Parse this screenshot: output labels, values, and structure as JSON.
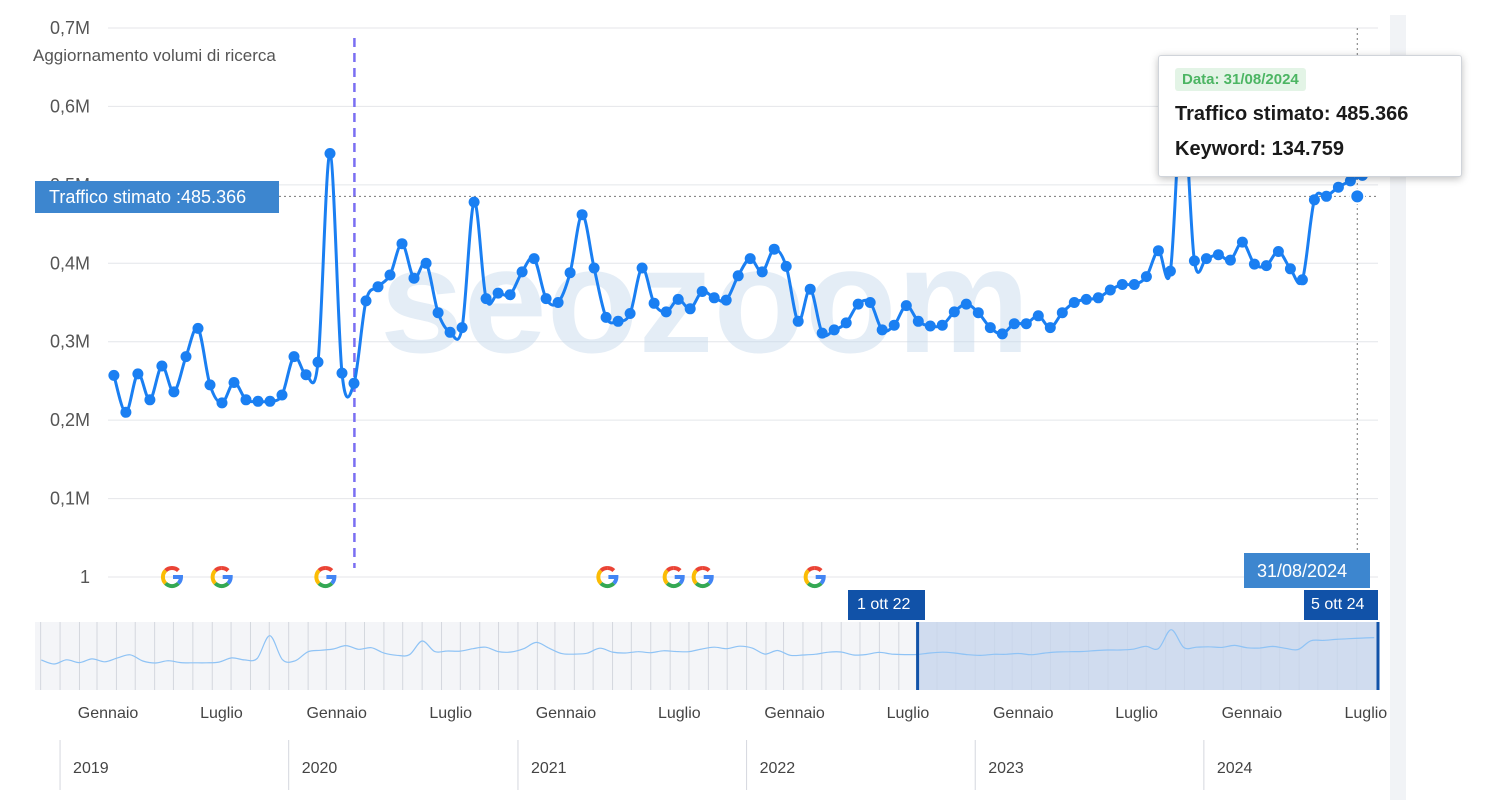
{
  "chart_data": {
    "type": "line",
    "title": "",
    "y_axis": {
      "ticks": [
        "1",
        "0,1M",
        "0,2M",
        "0,3M",
        "0,4M",
        "0,5M",
        "0,6M",
        "0,7M"
      ],
      "ylim": [
        0,
        700000
      ]
    },
    "x_axis_months": [
      "Gennaio",
      "Luglio",
      "Gennaio",
      "Luglio",
      "Gennaio",
      "Luglio",
      "Gennaio",
      "Luglio",
      "Gennaio",
      "Luglio",
      "Gennaio",
      "Luglio"
    ],
    "x_axis_years": [
      "2019",
      "2020",
      "2021",
      "2022",
      "2023",
      "2024"
    ],
    "series": [
      {
        "color": "#1a7ff2",
        "x_start": "2018-12-02",
        "x_end": "2024-09-29",
        "values": [
          257000,
          210000,
          259000,
          226000,
          269000,
          236000,
          281000,
          317000,
          245000,
          222000,
          248000,
          226000,
          224000,
          224000,
          232000,
          281000,
          258000,
          274000,
          540000,
          260000,
          247000,
          352000,
          370000,
          385000,
          425000,
          381000,
          400000,
          337000,
          312000,
          318000,
          478000,
          355000,
          362000,
          360000,
          389000,
          406000,
          355000,
          350000,
          388000,
          462000,
          394000,
          331000,
          326000,
          336000,
          394000,
          349000,
          338000,
          354000,
          342000,
          364000,
          356000,
          353000,
          384000,
          406000,
          389000,
          418000,
          396000,
          326000,
          367000,
          311000,
          315000,
          324000,
          348000,
          350000,
          315000,
          321000,
          346000,
          326000,
          320000,
          321000,
          338000,
          348000,
          337000,
          318000,
          310000,
          323000,
          323000,
          333000,
          318000,
          337000,
          350000,
          354000,
          356000,
          366000,
          373000,
          373000,
          383000,
          416000,
          390000,
          610000,
          403000,
          406000,
          411000,
          404000,
          427000,
          399000,
          397000,
          415000,
          393000,
          379000,
          481000,
          485366,
          497000,
          505000,
          512000,
          518000
        ]
      }
    ],
    "reference_lines": [
      {
        "label": "Aggiornamento volumi di ricerca",
        "x": "2020-01-12",
        "style": "dashed"
      }
    ],
    "google_update_markers": [
      "2019-03-10",
      "2019-06-02",
      "2019-11-24",
      "2021-03-14",
      "2021-07-04",
      "2021-08-22",
      "2022-02-27"
    ],
    "crosshair": {
      "x_label": "31/08/2024",
      "y_label": "Traffico stimato :485.366",
      "x": "2024-08-31",
      "y": 485366
    },
    "tooltip": {
      "date": "Data: 31/08/2024",
      "traffic": "Traffico stimato: 485.366",
      "keywords": "Keyword: 134.759"
    },
    "navigator": {
      "range_start_label": "1 ott 22",
      "range_end_label": "5 ott 24",
      "range_start": "2022-10-01",
      "range_end": "2024-10-05"
    },
    "watermark": "seozoom",
    "legend": "none",
    "grid": true
  },
  "colors": {
    "line": "#1a7ff2",
    "crosshair_label_bg": "#3d86cf",
    "navigator_flag_bg": "#1152a8",
    "navigator_selection": "#c7d6ec",
    "reference_line": "#7a6ff2",
    "tooltip_date_bg": "#e3f4e6",
    "tooltip_date_text": "#4cb563"
  }
}
